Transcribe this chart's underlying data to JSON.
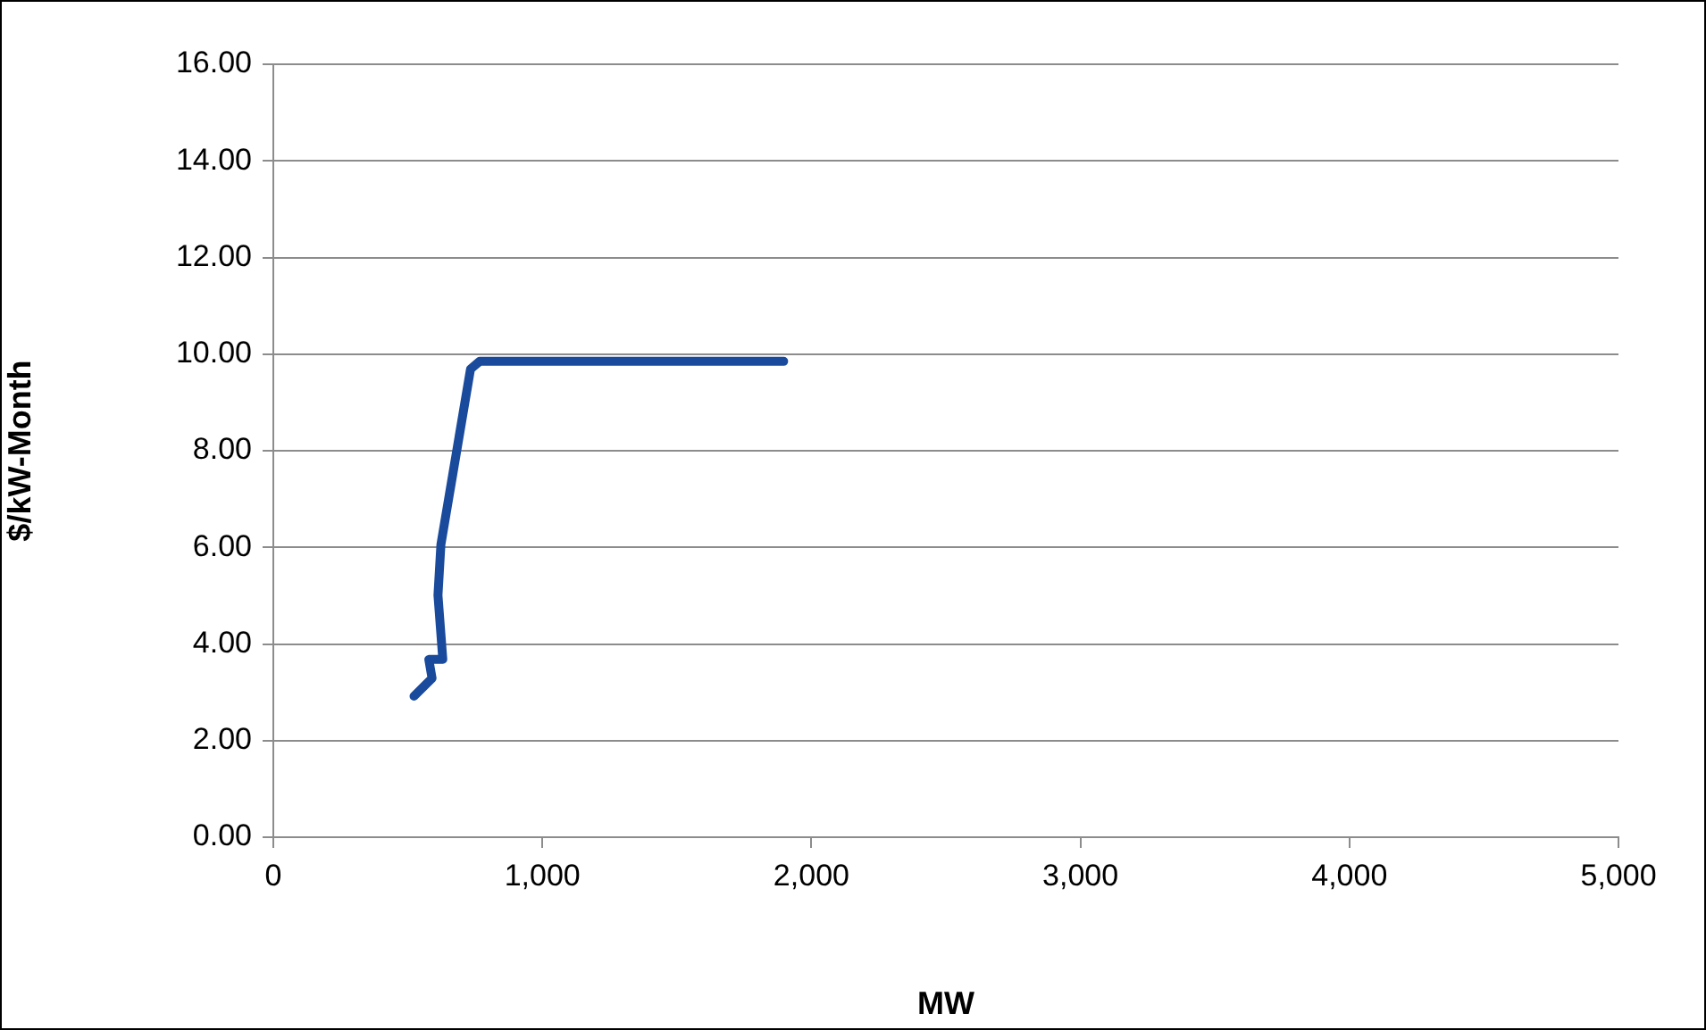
{
  "chart_data": {
    "type": "line",
    "xlabel": "MW",
    "ylabel": "$/kW-Month",
    "series": [
      {
        "color": "#1a4a9c",
        "x": [
          523,
          590,
          578,
          630,
          612,
          623,
          733,
          767,
          1897
        ],
        "values": [
          2.92,
          3.29,
          3.68,
          3.68,
          5.01,
          6.06,
          9.69,
          9.85,
          9.85
        ]
      }
    ],
    "xlim": [
      0,
      5000
    ],
    "xticks": [
      0,
      {
        "value": 1000,
        "label": "1,000"
      },
      {
        "value": 2000,
        "label": "2,000"
      },
      {
        "value": 3000,
        "label": "3,000"
      },
      {
        "value": 4000,
        "label": "4,000"
      },
      {
        "value": 5000,
        "label": "5,000"
      }
    ],
    "ylim": [
      0,
      16
    ],
    "yticks": [
      {
        "value": 0,
        "label": "0.00"
      },
      {
        "value": 2,
        "label": "2.00"
      },
      {
        "value": 4,
        "label": "4.00"
      },
      {
        "value": 6,
        "label": "6.00"
      },
      {
        "value": 8,
        "label": "8.00"
      },
      {
        "value": 10,
        "label": "10.00"
      },
      {
        "value": 12,
        "label": "12.00"
      },
      {
        "value": 14,
        "label": "14.00"
      },
      {
        "value": 16,
        "label": "16.00"
      }
    ],
    "grid": "y",
    "legend": false,
    "marker": "none",
    "line_style": "solid"
  }
}
